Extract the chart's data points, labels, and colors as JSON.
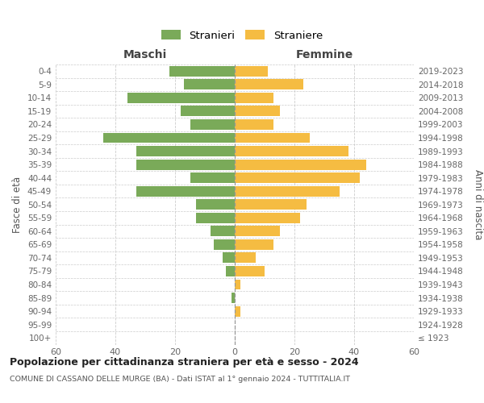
{
  "age_groups": [
    "100+",
    "95-99",
    "90-94",
    "85-89",
    "80-84",
    "75-79",
    "70-74",
    "65-69",
    "60-64",
    "55-59",
    "50-54",
    "45-49",
    "40-44",
    "35-39",
    "30-34",
    "25-29",
    "20-24",
    "15-19",
    "10-14",
    "5-9",
    "0-4"
  ],
  "birth_years": [
    "≤ 1923",
    "1924-1928",
    "1929-1933",
    "1934-1938",
    "1939-1943",
    "1944-1948",
    "1949-1953",
    "1954-1958",
    "1959-1963",
    "1964-1968",
    "1969-1973",
    "1974-1978",
    "1979-1983",
    "1984-1988",
    "1989-1993",
    "1994-1998",
    "1999-2003",
    "2004-2008",
    "2009-2013",
    "2014-2018",
    "2019-2023"
  ],
  "males": [
    0,
    0,
    0,
    1,
    0,
    3,
    4,
    7,
    8,
    13,
    13,
    33,
    15,
    33,
    33,
    44,
    15,
    18,
    36,
    17,
    22
  ],
  "females": [
    0,
    0,
    2,
    0,
    2,
    10,
    7,
    13,
    15,
    22,
    24,
    35,
    42,
    44,
    38,
    25,
    13,
    15,
    13,
    23,
    11
  ],
  "male_color": "#7aaa59",
  "female_color": "#f5bc42",
  "background_color": "#ffffff",
  "grid_color": "#cccccc",
  "male_label": "Stranieri",
  "female_label": "Straniere",
  "maschi_label": "Maschi",
  "femmine_label": "Femmine",
  "ylabel": "Fasce di età",
  "right_ylabel": "Anni di nascita",
  "title": "Popolazione per cittadinanza straniera per età e sesso - 2024",
  "subtitle": "COMUNE DI CASSANO DELLE MURGE (BA) - Dati ISTAT al 1° gennaio 2024 - TUTTITALIA.IT",
  "xlim": 60
}
